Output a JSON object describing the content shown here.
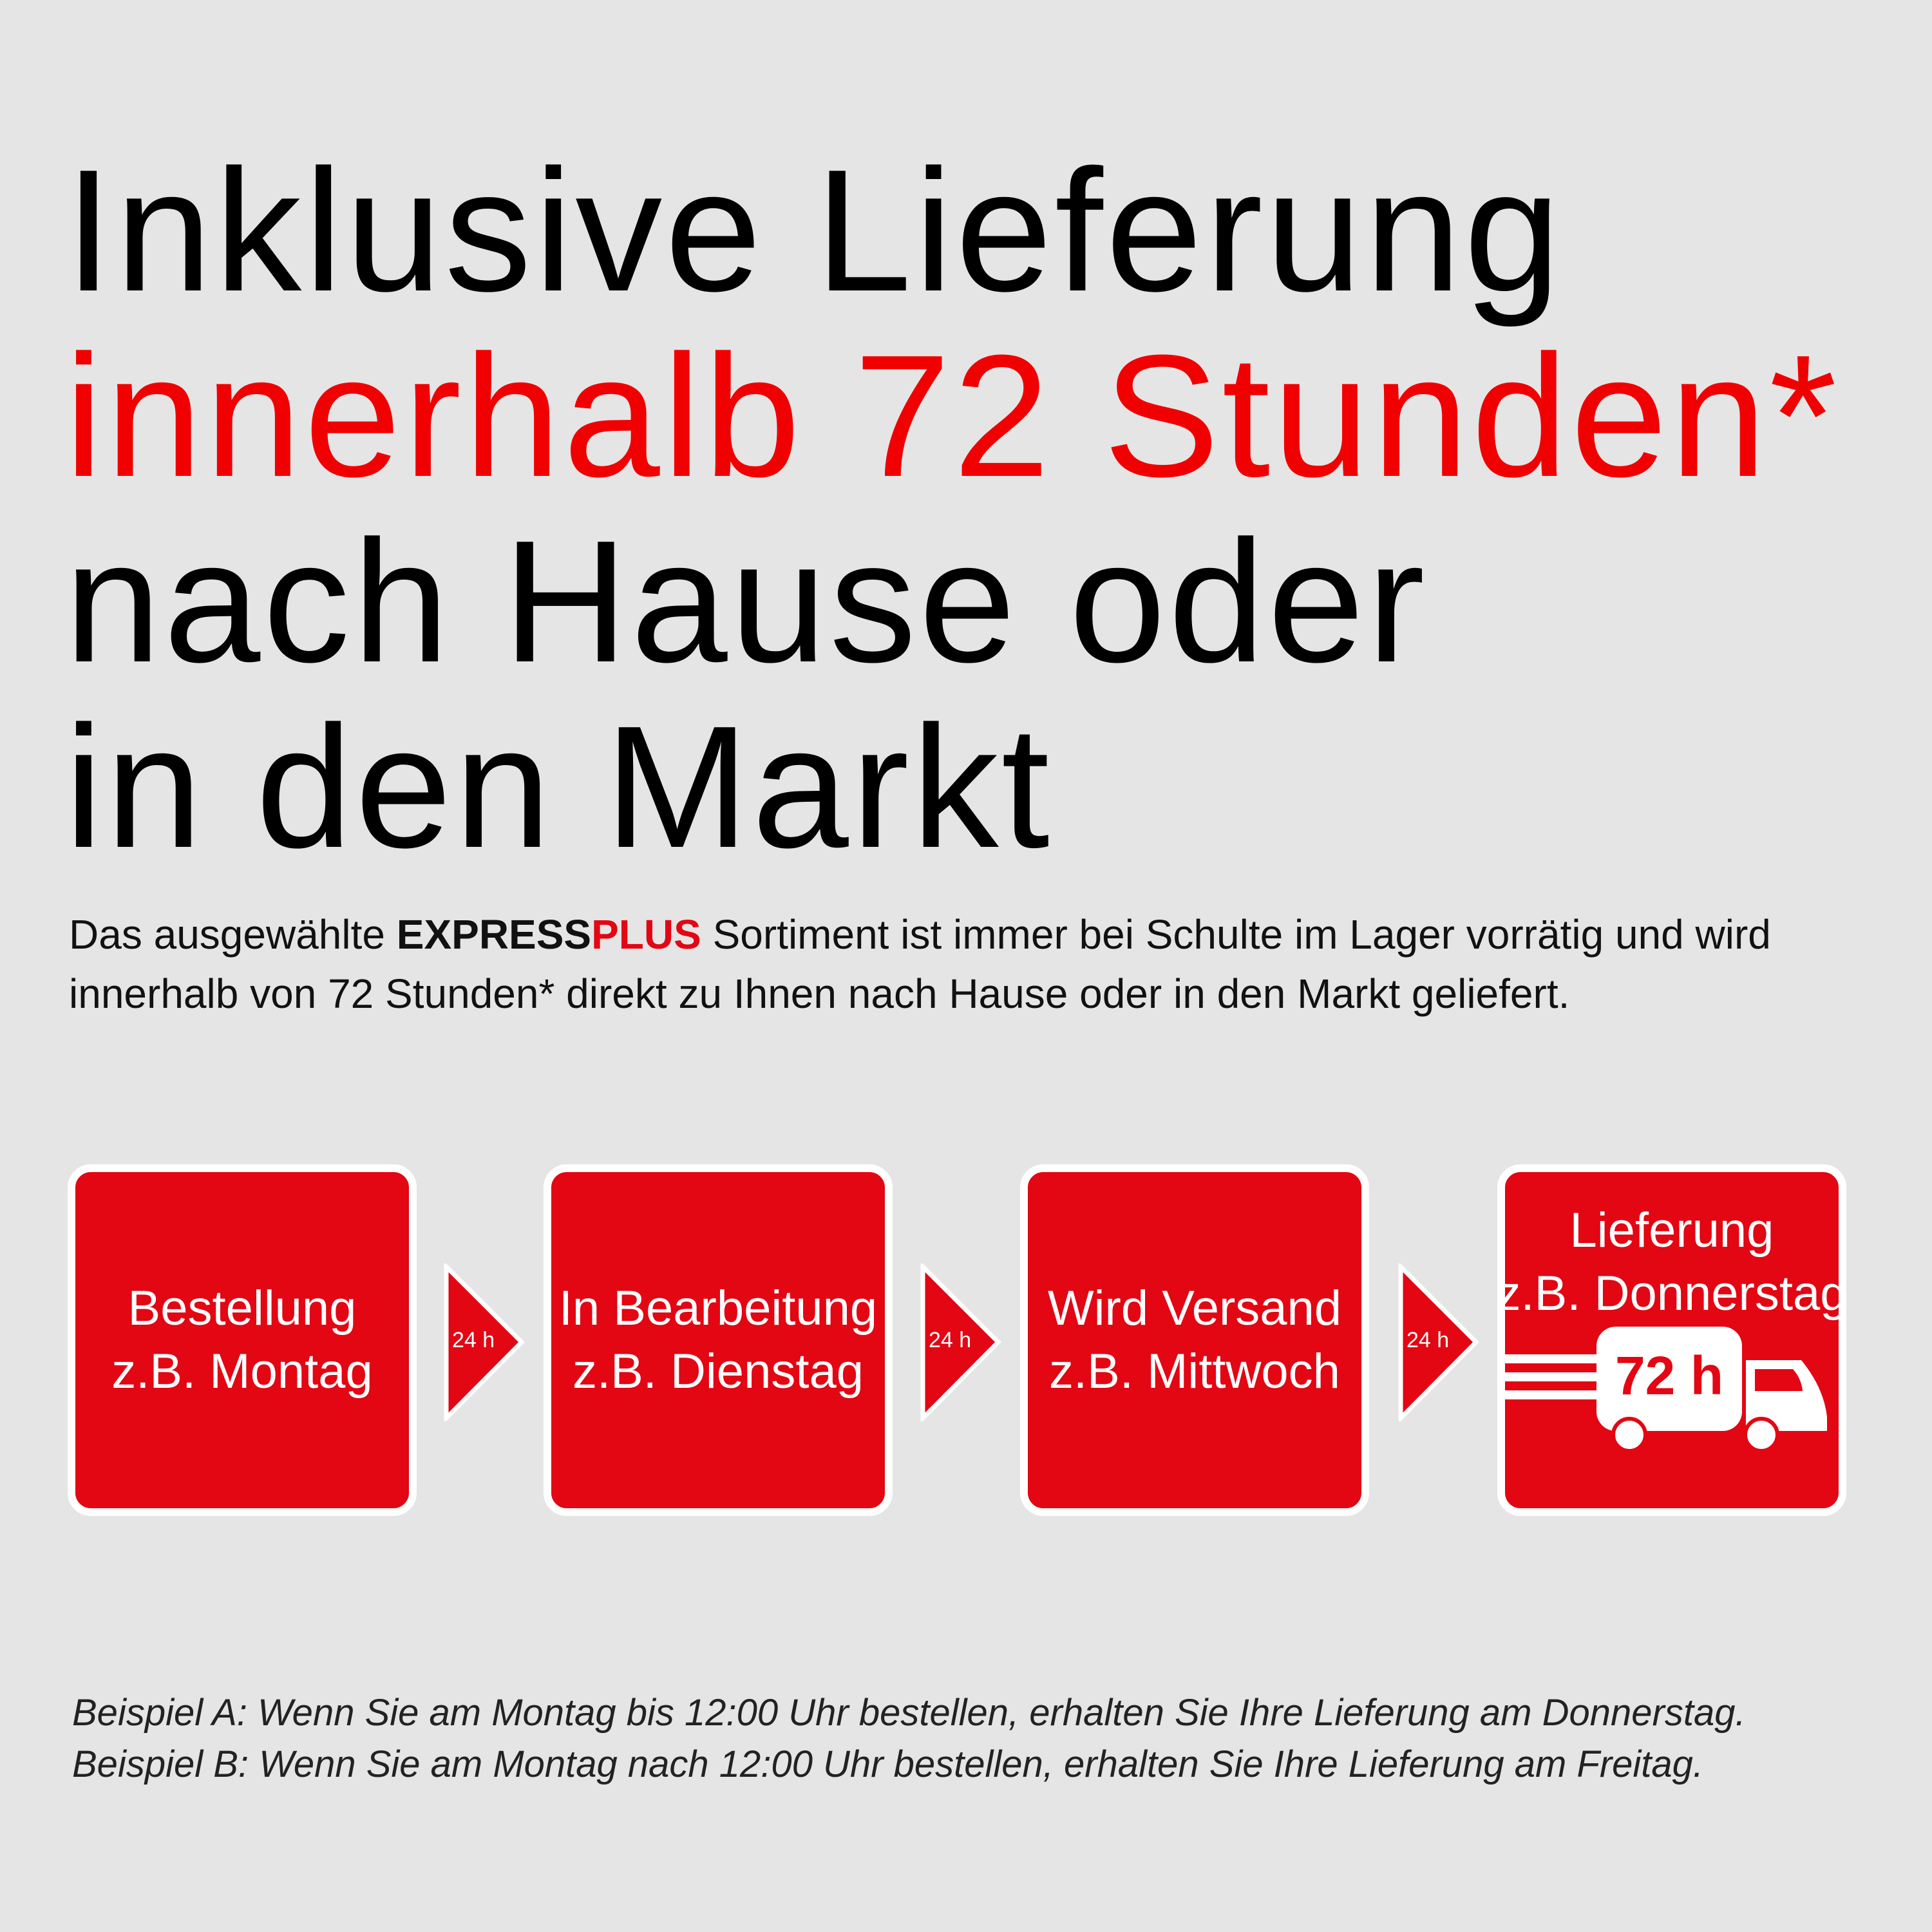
{
  "headline": {
    "line1": "Inklusive Lieferung",
    "line2": "innerhalb 72 Stunden*",
    "line3": "nach Hause oder",
    "line4": "in den Markt"
  },
  "intro": {
    "part1": "Das ausgewählte ",
    "brand_express": "EXPRESS",
    "brand_plus": "PLUS",
    "part2": " Sortiment ist immer bei Schulte im Lager vorrätig und wird innerhalb von 72 Stunden* direkt zu Ihnen nach Hause oder in den Markt geliefert."
  },
  "steps": [
    {
      "title": "Bestellung",
      "example": "z.B. Montag"
    },
    {
      "title": "In Bearbeitung",
      "example": "z.B. Dienstag"
    },
    {
      "title": "Wird Versand",
      "example": "z.B. Mittwoch"
    },
    {
      "title": "Lieferung",
      "example": "z.B. Donnerstag",
      "badge": "72 h",
      "icon": "delivery-truck-icon"
    }
  ],
  "arrows": [
    {
      "label": "24 h",
      "icon": "arrow-right-triangle-icon"
    },
    {
      "label": "24 h",
      "icon": "arrow-right-triangle-icon"
    },
    {
      "label": "24 h",
      "icon": "arrow-right-triangle-icon"
    }
  ],
  "footer": {
    "example_a": "Beispiel A: Wenn Sie am Montag bis 12:00 Uhr bestellen, erhalten Sie Ihre Lieferung am Donnerstag.",
    "example_b": "Beispiel B: Wenn Sie am Montag nach 12:00 Uhr bestellen, erhalten Sie Ihre Lieferung am Freitag."
  },
  "colors": {
    "brand_red": "#e30613",
    "headline_red": "#f00000",
    "background": "#e5e5e5"
  }
}
